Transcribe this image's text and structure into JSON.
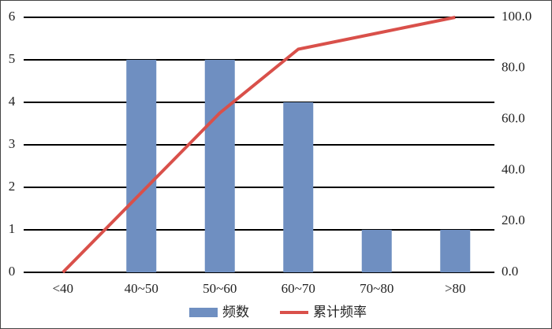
{
  "chart_data": {
    "type": "combo",
    "categories": [
      "<40",
      "40~50",
      "50~60",
      "60~70",
      "70~80",
      ">80"
    ],
    "series": [
      {
        "name": "频数",
        "type": "bar",
        "color": "#6f8fc1",
        "values": [
          0,
          5,
          5,
          4,
          1,
          1
        ]
      },
      {
        "name": "累计频率",
        "type": "line",
        "axis": "y2",
        "color": "#d9504a",
        "values": [
          0,
          31.25,
          62.5,
          87.5,
          93.75,
          100
        ]
      }
    ],
    "ylim": [
      0,
      6
    ],
    "yticks": [
      0,
      1,
      2,
      3,
      4,
      5,
      6
    ],
    "y2lim": [
      0,
      100
    ],
    "y2ticks": [
      {
        "value": 0,
        "label": "0.0"
      },
      {
        "value": 20,
        "label": "20.0"
      },
      {
        "value": 40,
        "label": "40.0"
      },
      {
        "value": 60,
        "label": "60.0"
      },
      {
        "value": 80,
        "label": "80.0"
      },
      {
        "value": 100,
        "label": "100.0"
      }
    ],
    "grid": true,
    "legend": "bottom"
  }
}
